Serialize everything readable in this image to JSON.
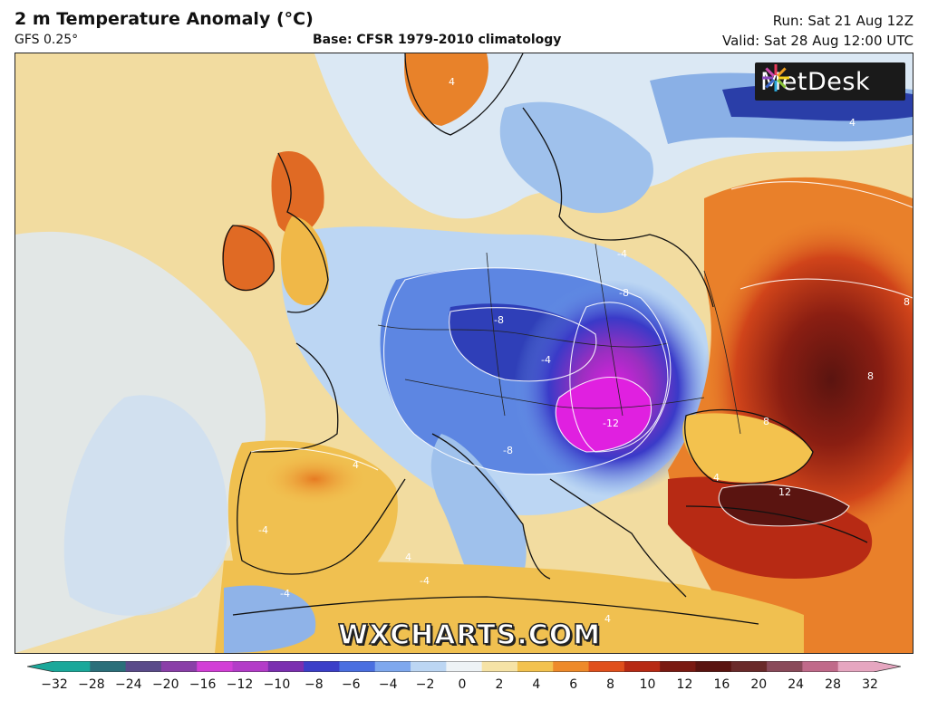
{
  "header": {
    "title": "2 m Temperature Anomaly (°C)",
    "model": "GFS 0.25°",
    "base": "Base: CFSR 1979-2010 climatology",
    "run": "Run: Sat 21 Aug 12Z",
    "valid": "Valid: Sat 28 Aug 12:00 UTC"
  },
  "map": {
    "region": "Europe",
    "contour_labels": [
      "4",
      "4",
      "-4",
      "-4",
      "-8",
      "-8",
      "-12",
      "-8",
      "4",
      "8",
      "8",
      "8",
      "12",
      "4",
      "-4",
      "-4",
      "4",
      "-4",
      "4"
    ]
  },
  "logo": {
    "text": "MetDesk"
  },
  "watermark": "WXCHARTS.COM",
  "colorbar": {
    "ticks": [
      "−32",
      "−28",
      "−24",
      "−20",
      "−16",
      "−12",
      "−10",
      "−8",
      "−6",
      "−4",
      "−2",
      "0",
      "2",
      "4",
      "6",
      "8",
      "10",
      "12",
      "16",
      "20",
      "24",
      "28",
      "32"
    ],
    "colors": [
      "#1aa89a",
      "#2b6f7a",
      "#5a4b8a",
      "#8a3fa8",
      "#d23fd6",
      "#b33cc8",
      "#7b2fb0",
      "#3b3fc8",
      "#4a6fe0",
      "#7fa8ee",
      "#bcd6f3",
      "#eef3f6",
      "#f6e3a6",
      "#f3c24e",
      "#ee8a2a",
      "#e0501c",
      "#b72a14",
      "#7a1a12",
      "#5a1410",
      "#6a2a2a",
      "#8a4a5a",
      "#c06a8a",
      "#e6a6c0"
    ]
  }
}
